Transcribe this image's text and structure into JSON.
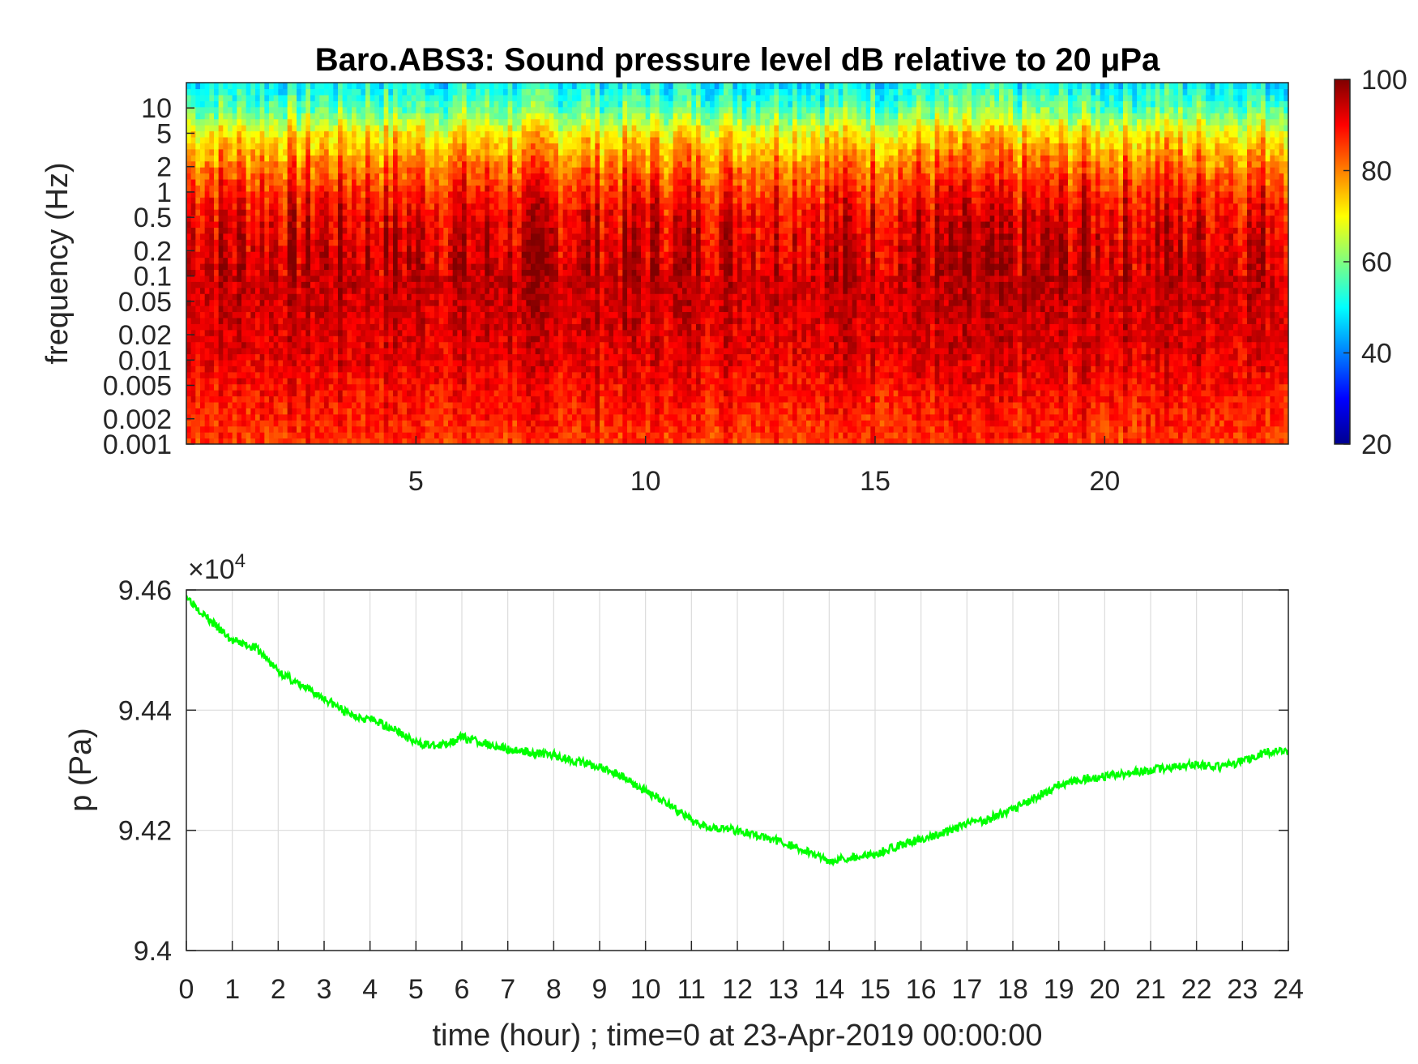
{
  "chart_data": [
    {
      "type": "heatmap",
      "title": "Baro.ABS3: Sound pressure level dB relative to 20 μPa",
      "xlabel": "",
      "ylabel": "frequency (Hz)",
      "xlim": [
        0,
        24
      ],
      "ylim": [
        0.001,
        20
      ],
      "y_scale": "log",
      "x_ticks": [
        5,
        10,
        15,
        20
      ],
      "y_tick_labels": [
        "0.001",
        "0.002",
        "0.005",
        "0.01",
        "0.02",
        "0.05",
        "0.1",
        "0.2",
        "0.5",
        "1",
        "2",
        "5",
        "10"
      ],
      "y_tick_values": [
        0.001,
        0.002,
        0.005,
        0.01,
        0.02,
        0.05,
        0.1,
        0.2,
        0.5,
        1,
        2,
        5,
        10
      ],
      "colormap": "jet",
      "color_range": [
        20,
        100
      ],
      "colorbar_ticks": [
        20,
        40,
        60,
        80,
        100
      ],
      "level_profile": {
        "frequency": [
          0.001,
          0.002,
          0.005,
          0.01,
          0.02,
          0.05,
          0.1,
          0.2,
          0.5,
          1,
          2,
          5,
          10,
          20
        ],
        "level_db": [
          86,
          88,
          90,
          92,
          93,
          94,
          95,
          94,
          92,
          88,
          82,
          72,
          58,
          50
        ]
      }
    },
    {
      "type": "line",
      "title": "",
      "xlabel": "time (hour) ; time=0 at 23-Apr-2019 00:00:00",
      "ylabel": "p (Pa)",
      "y_multiplier": "×10",
      "y_multiplier_exponent": "4",
      "xlim": [
        0,
        24
      ],
      "ylim": [
        94000,
        94600
      ],
      "x_ticks": [
        0,
        1,
        2,
        3,
        4,
        5,
        6,
        7,
        8,
        9,
        10,
        11,
        12,
        13,
        14,
        15,
        16,
        17,
        18,
        19,
        20,
        21,
        22,
        23,
        24
      ],
      "y_ticks": [
        94000,
        94200,
        94400,
        94600
      ],
      "y_tick_labels": [
        "9.4",
        "9.42",
        "9.44",
        "9.46"
      ],
      "grid": true,
      "series": [
        {
          "color": "#00ff00",
          "x": [
            0,
            0.5,
            1,
            1.5,
            2,
            2.5,
            3,
            3.5,
            4,
            4.5,
            5,
            5.5,
            6,
            6.5,
            7,
            7.5,
            8,
            8.5,
            9,
            9.5,
            10,
            10.5,
            11,
            11.5,
            12,
            12.5,
            13,
            13.5,
            14,
            14.5,
            15,
            15.5,
            16,
            16.5,
            17,
            17.5,
            18,
            18.5,
            19,
            19.5,
            20,
            20.5,
            21,
            21.5,
            22,
            22.5,
            23,
            23.5,
            24
          ],
          "y": [
            94590,
            94550,
            94515,
            94505,
            94465,
            94440,
            94420,
            94395,
            94385,
            94370,
            94345,
            94340,
            94355,
            94345,
            94335,
            94330,
            94325,
            94315,
            94305,
            94290,
            94265,
            94245,
            94215,
            94205,
            94200,
            94190,
            94180,
            94165,
            94150,
            94155,
            94160,
            94175,
            94185,
            94195,
            94210,
            94220,
            94235,
            94255,
            94275,
            94285,
            94290,
            94295,
            94300,
            94305,
            94310,
            94305,
            94315,
            94330,
            94330
          ]
        }
      ]
    }
  ]
}
